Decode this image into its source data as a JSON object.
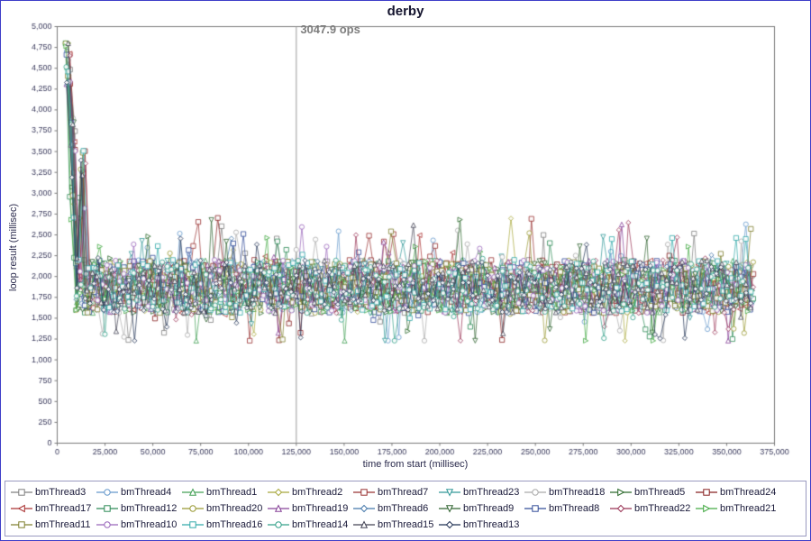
{
  "chart": {
    "title": "derby",
    "annotation": {
      "text": "3047.9 ops",
      "x": 125000
    },
    "x_axis": {
      "label": "time from start (millisec)",
      "min": 0,
      "max": 375000,
      "tick_step": 25000
    },
    "y_axis": {
      "label": "loop result (millisec)",
      "min": 0,
      "max": 5000,
      "tick_step": 250
    },
    "marker_line_x": 125000,
    "axis_color": "#7a7a7a",
    "tick_label_color": "#3a3a5c",
    "marker_line_color": "#9a9a9a"
  },
  "chart_data": {
    "type": "line",
    "title": "derby",
    "xlabel": "time from start (millisec)",
    "ylabel": "loop result (millisec)",
    "xlim": [
      0,
      375000
    ],
    "ylim": [
      0,
      5000
    ],
    "grid": false,
    "legend_position": "bottom",
    "annotation": "3047.9 ops",
    "pattern": {
      "description": "24 noisy thread series sampled ~every 2.5s from ~4,500 to ~364,000 ms",
      "x_start": 4200,
      "x_end": 364000,
      "avg_step_ms": 2550,
      "baseline_y": 1880,
      "noise_band": [
        1250,
        2650
      ],
      "initial_spike": {
        "x": 6000,
        "y_range": [
          4000,
          4800
        ]
      },
      "secondary_spike": {
        "x": 12500,
        "y_range": [
          2700,
          3550
        ]
      }
    },
    "series": [
      {
        "name": "bmThread3",
        "color": "#7f7f7f",
        "marker": "square"
      },
      {
        "name": "bmThread4",
        "color": "#6699cc",
        "marker": "circle"
      },
      {
        "name": "bmThread1",
        "color": "#44a056",
        "marker": "triangle-up"
      },
      {
        "name": "bmThread2",
        "color": "#a8a83c",
        "marker": "diamond"
      },
      {
        "name": "bmThread7",
        "color": "#993333",
        "marker": "square"
      },
      {
        "name": "bmThread23",
        "color": "#339999",
        "marker": "triangle-down"
      },
      {
        "name": "bmThread18",
        "color": "#aaaaaa",
        "marker": "circle"
      },
      {
        "name": "bmThread5",
        "color": "#2d6a2d",
        "marker": "triangle-right"
      },
      {
        "name": "bmThread24",
        "color": "#882222",
        "marker": "square"
      },
      {
        "name": "bmThread17",
        "color": "#aa3333",
        "marker": "triangle-left"
      },
      {
        "name": "bmThread12",
        "color": "#2e8b57",
        "marker": "square"
      },
      {
        "name": "bmThread20",
        "color": "#999933",
        "marker": "circle"
      },
      {
        "name": "bmThread19",
        "color": "#884499",
        "marker": "triangle-up"
      },
      {
        "name": "bmThread6",
        "color": "#4477aa",
        "marker": "diamond"
      },
      {
        "name": "bmThread9",
        "color": "#336633",
        "marker": "triangle-down"
      },
      {
        "name": "bmThread8",
        "color": "#334d99",
        "marker": "square"
      },
      {
        "name": "bmThread22",
        "color": "#993355",
        "marker": "diamond"
      },
      {
        "name": "bmThread21",
        "color": "#44aa44",
        "marker": "triangle-right"
      },
      {
        "name": "bmThread11",
        "color": "#808030",
        "marker": "square"
      },
      {
        "name": "bmThread10",
        "color": "#9966bb",
        "marker": "circle"
      },
      {
        "name": "bmThread16",
        "color": "#33aaaa",
        "marker": "square"
      },
      {
        "name": "bmThread14",
        "color": "#33a089",
        "marker": "circle"
      },
      {
        "name": "bmThread15",
        "color": "#444455",
        "marker": "triangle-up"
      },
      {
        "name": "bmThread13",
        "color": "#223355",
        "marker": "diamond"
      }
    ]
  }
}
